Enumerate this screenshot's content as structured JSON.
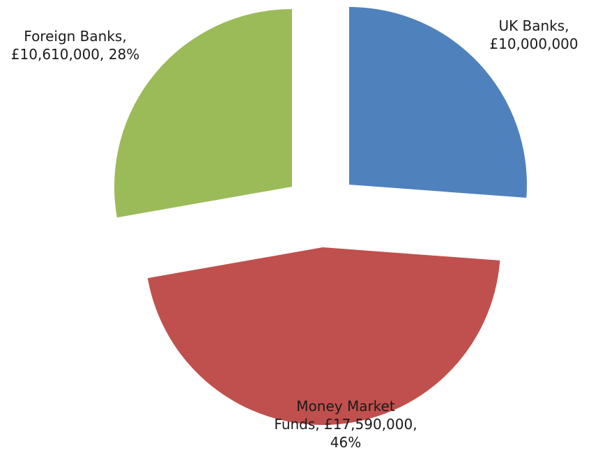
{
  "chart_data": {
    "type": "pie",
    "title": "",
    "exploded": true,
    "legend": "none",
    "slices": [
      {
        "name": "UK Banks",
        "value": 10000000,
        "color": "#4f81bd",
        "label_lines": [
          "UK Banks,",
          "£10,000,000"
        ]
      },
      {
        "name": "Money Market Funds",
        "value": 17590000,
        "percent": 46,
        "color": "#c0504d",
        "label_lines": [
          "Money Market",
          "Funds, £17,590,000,",
          "46%"
        ]
      },
      {
        "name": "Foreign Banks",
        "value": 10610000,
        "percent": 28,
        "color": "#9bbb59",
        "label_lines": [
          "Foreign Banks,",
          "£10,610,000, 28%"
        ]
      }
    ]
  }
}
